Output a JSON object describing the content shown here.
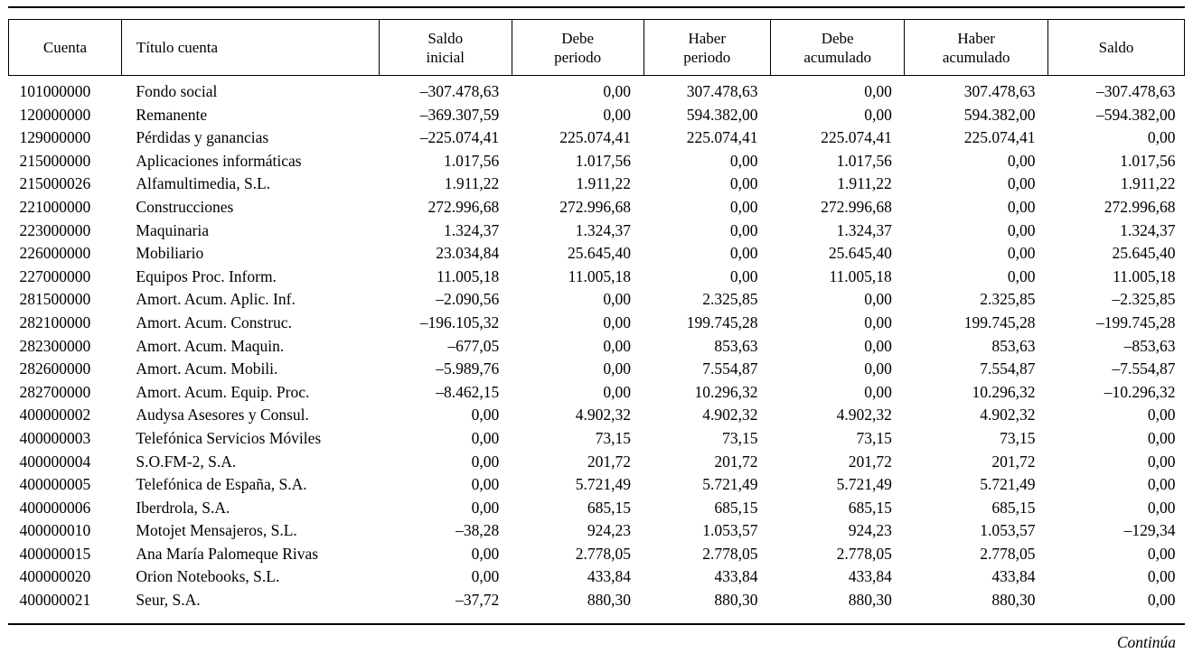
{
  "table": {
    "headers": [
      "Cuenta",
      "Título cuenta",
      "Saldo\ninicial",
      "Debe\nperiodo",
      "Haber\nperiodo",
      "Debe\nacumulado",
      "Haber\nacumulado",
      "Saldo"
    ],
    "column_alignments": [
      "left",
      "left",
      "right",
      "right",
      "right",
      "right",
      "right",
      "right"
    ],
    "rows": [
      [
        "101000000",
        "Fondo social",
        "–307.478,63",
        "0,00",
        "307.478,63",
        "0,00",
        "307.478,63",
        "–307.478,63"
      ],
      [
        "120000000",
        "Remanente",
        "–369.307,59",
        "0,00",
        "594.382,00",
        "0,00",
        "594.382,00",
        "–594.382,00"
      ],
      [
        "129000000",
        "Pérdidas y ganancias",
        "–225.074,41",
        "225.074,41",
        "225.074,41",
        "225.074,41",
        "225.074,41",
        "0,00"
      ],
      [
        "215000000",
        "Aplicaciones informáticas",
        "1.017,56",
        "1.017,56",
        "0,00",
        "1.017,56",
        "0,00",
        "1.017,56"
      ],
      [
        "215000026",
        "Alfamultimedia, S.L.",
        "1.911,22",
        "1.911,22",
        "0,00",
        "1.911,22",
        "0,00",
        "1.911,22"
      ],
      [
        "221000000",
        "Construcciones",
        "272.996,68",
        "272.996,68",
        "0,00",
        "272.996,68",
        "0,00",
        "272.996,68"
      ],
      [
        "223000000",
        "Maquinaria",
        "1.324,37",
        "1.324,37",
        "0,00",
        "1.324,37",
        "0,00",
        "1.324,37"
      ],
      [
        "226000000",
        "Mobiliario",
        "23.034,84",
        "25.645,40",
        "0,00",
        "25.645,40",
        "0,00",
        "25.645,40"
      ],
      [
        "227000000",
        "Equipos Proc. Inform.",
        "11.005,18",
        "11.005,18",
        "0,00",
        "11.005,18",
        "0,00",
        "11.005,18"
      ],
      [
        "281500000",
        "Amort. Acum. Aplic. Inf.",
        "–2.090,56",
        "0,00",
        "2.325,85",
        "0,00",
        "2.325,85",
        "–2.325,85"
      ],
      [
        "282100000",
        "Amort. Acum. Construc.",
        "–196.105,32",
        "0,00",
        "199.745,28",
        "0,00",
        "199.745,28",
        "–199.745,28"
      ],
      [
        "282300000",
        "Amort. Acum. Maquin.",
        "–677,05",
        "0,00",
        "853,63",
        "0,00",
        "853,63",
        "–853,63"
      ],
      [
        "282600000",
        "Amort. Acum. Mobili.",
        "–5.989,76",
        "0,00",
        "7.554,87",
        "0,00",
        "7.554,87",
        "–7.554,87"
      ],
      [
        "282700000",
        "Amort. Acum. Equip. Proc.",
        "–8.462,15",
        "0,00",
        "10.296,32",
        "0,00",
        "10.296,32",
        "–10.296,32"
      ],
      [
        "400000002",
        "Audysa Asesores y Consul.",
        "0,00",
        "4.902,32",
        "4.902,32",
        "4.902,32",
        "4.902,32",
        "0,00"
      ],
      [
        "400000003",
        "Telefónica Servicios Móviles",
        "0,00",
        "73,15",
        "73,15",
        "73,15",
        "73,15",
        "0,00"
      ],
      [
        "400000004",
        "S.O.FM-2, S.A.",
        "0,00",
        "201,72",
        "201,72",
        "201,72",
        "201,72",
        "0,00"
      ],
      [
        "400000005",
        "Telefónica de España, S.A.",
        "0,00",
        "5.721,49",
        "5.721,49",
        "5.721,49",
        "5.721,49",
        "0,00"
      ],
      [
        "400000006",
        "Iberdrola, S.A.",
        "0,00",
        "685,15",
        "685,15",
        "685,15",
        "685,15",
        "0,00"
      ],
      [
        "400000010",
        "Motojet Mensajeros, S.L.",
        "–38,28",
        "924,23",
        "1.053,57",
        "924,23",
        "1.053,57",
        "–129,34"
      ],
      [
        "400000015",
        "Ana María Palomeque Rivas",
        "0,00",
        "2.778,05",
        "2.778,05",
        "2.778,05",
        "2.778,05",
        "0,00"
      ],
      [
        "400000020",
        "Orion Notebooks, S.L.",
        "0,00",
        "433,84",
        "433,84",
        "433,84",
        "433,84",
        "0,00"
      ],
      [
        "400000021",
        "Seur, S.A.",
        "–37,72",
        "880,30",
        "880,30",
        "880,30",
        "880,30",
        "0,00"
      ]
    ]
  },
  "footer": {
    "continuation": "Continúa"
  },
  "colors": {
    "text": "#000000",
    "background": "#ffffff",
    "rule": "#000000"
  }
}
